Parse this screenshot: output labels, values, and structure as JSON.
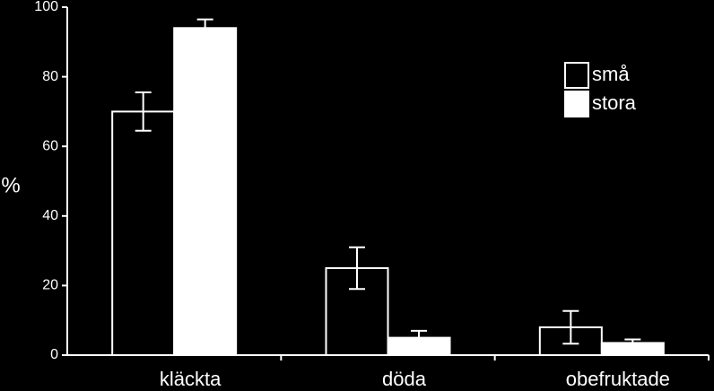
{
  "chart_data": {
    "type": "bar",
    "ylabel": "%",
    "categories": [
      "kläckta",
      "döda",
      "obefruktade"
    ],
    "series": [
      {
        "name": "små",
        "color": "#000000",
        "values": [
          70,
          25,
          8
        ],
        "errors": [
          5.5,
          6,
          4.7
        ]
      },
      {
        "name": "stora",
        "color": "#ffffff",
        "values": [
          94,
          5,
          3.5
        ],
        "errors": [
          2.5,
          2,
          1
        ]
      }
    ],
    "ylim": [
      0,
      100
    ],
    "yticks": [
      0,
      20,
      40,
      60,
      80,
      100
    ],
    "legend": "upper right"
  }
}
